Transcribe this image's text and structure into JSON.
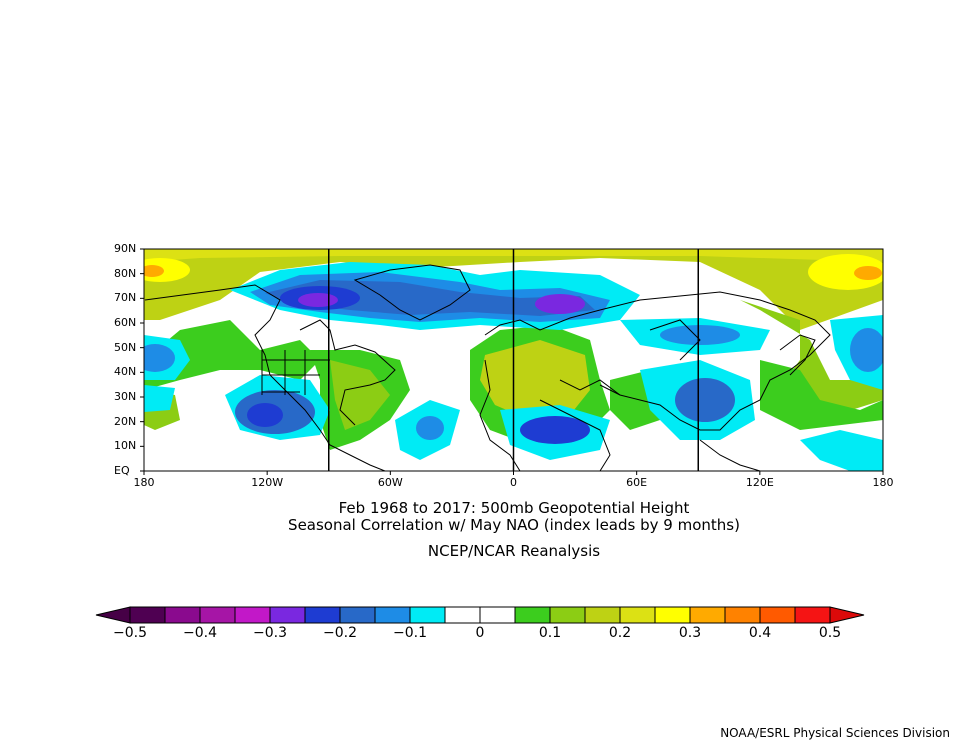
{
  "title": {
    "line1": "Feb 1968 to 2017: 500mb Geopotential Height",
    "line2": "Seasonal Correlation w/ May NAO (index leads by 9 months)",
    "line3": "NCEP/NCAR Reanalysis"
  },
  "map": {
    "lat_labels": [
      "90N",
      "80N",
      "70N",
      "60N",
      "50N",
      "40N",
      "30N",
      "20N",
      "10N",
      "EQ"
    ],
    "lon_labels": [
      "180",
      "120W",
      "60W",
      "0",
      "60E",
      "120E",
      "180"
    ],
    "lon_range": [
      -180,
      180
    ],
    "lat_range": [
      0,
      90
    ],
    "divider_longitudes": [
      -90,
      0,
      90
    ]
  },
  "colorbar": {
    "tick_labels": [
      "-0.5",
      "-0.4",
      "-0.3",
      "-0.2",
      "-0.1",
      "0",
      "0.1",
      "0.2",
      "0.3",
      "0.4",
      "0.5"
    ],
    "colors": [
      "#4f0052",
      "#8a0a8e",
      "#a615a6",
      "#c218c8",
      "#7a28e0",
      "#1e3cd2",
      "#2869c8",
      "#1e8ce6",
      "#00ebf5",
      "#ffffff",
      "#ffffff",
      "#3ccd1e",
      "#8ccd14",
      "#bed214",
      "#dce114",
      "#ffff00",
      "#ffaa00",
      "#ff8200",
      "#ff5a00",
      "#f51414"
    ],
    "left_arrow_color": "#460046",
    "right_arrow_color": "#dc0a0a"
  },
  "credit": "NOAA/ESRL Physical Sciences Division"
}
